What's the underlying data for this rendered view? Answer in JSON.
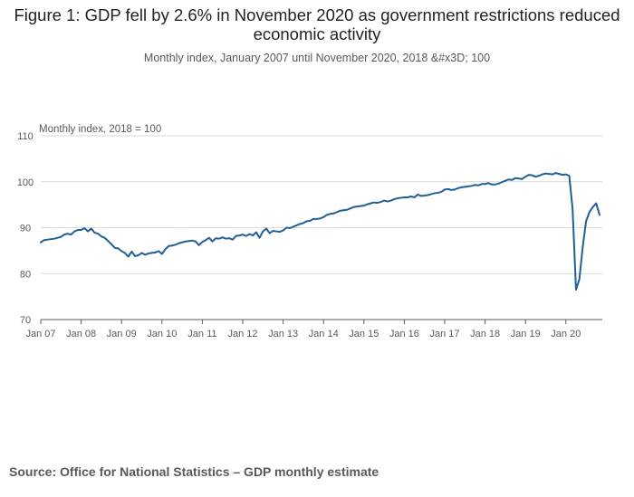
{
  "chart_data": {
    "type": "line",
    "title": "Figure 1: GDP fell by 2.6% in November 2020 as government restrictions reduced economic activity",
    "subtitle": "Monthly index, January 2007 until November 2020, 2018 &#x3D; 100",
    "ylabel": "Monthly index, 2018 = 100",
    "xlabel": "",
    "ylim": [
      70,
      110
    ],
    "yticks": [
      70,
      80,
      90,
      100,
      110
    ],
    "xticks": [
      "Jan 07",
      "Jan 08",
      "Jan 09",
      "Jan 10",
      "Jan 11",
      "Jan 12",
      "Jan 13",
      "Jan 14",
      "Jan 15",
      "Jan 16",
      "Jan 17",
      "Jan 18",
      "Jan 19",
      "Jan 20"
    ],
    "start": "Jan 2007",
    "end": "Nov 2020",
    "grid": true,
    "series": [
      {
        "name": "GDP monthly index",
        "color": "#206095",
        "values": [
          86.8,
          87.3,
          87.4,
          87.5,
          87.6,
          87.8,
          88.0,
          88.5,
          88.7,
          88.5,
          89.2,
          89.5,
          89.5,
          89.9,
          89.2,
          89.8,
          88.9,
          88.7,
          88.1,
          87.8,
          87.1,
          86.4,
          85.6,
          85.5,
          84.9,
          84.5,
          83.7,
          84.8,
          83.8,
          84.0,
          84.5,
          84.1,
          84.4,
          84.5,
          84.6,
          84.9,
          84.3,
          85.3,
          86.0,
          86.1,
          86.3,
          86.6,
          86.8,
          87.0,
          87.1,
          87.2,
          87.0,
          86.2,
          86.9,
          87.3,
          87.8,
          87.0,
          87.7,
          87.6,
          87.9,
          87.6,
          87.7,
          87.4,
          88.2,
          88.3,
          88.5,
          88.2,
          88.6,
          88.3,
          89.0,
          87.8,
          89.2,
          89.8,
          88.8,
          89.3,
          89.2,
          89.1,
          89.4,
          90.0,
          89.9,
          90.2,
          90.5,
          90.8,
          91.0,
          91.4,
          91.5,
          91.9,
          91.9,
          92.0,
          92.3,
          92.8,
          93.0,
          93.1,
          93.4,
          93.7,
          93.8,
          93.9,
          94.2,
          94.5,
          94.6,
          94.7,
          94.8,
          95.1,
          95.3,
          95.5,
          95.4,
          95.6,
          95.9,
          95.7,
          95.9,
          96.2,
          96.4,
          96.5,
          96.6,
          96.6,
          96.8,
          96.6,
          97.2,
          96.9,
          97.0,
          97.1,
          97.3,
          97.5,
          97.6,
          97.8,
          98.3,
          98.4,
          98.2,
          98.3,
          98.6,
          98.8,
          98.9,
          99.0,
          99.1,
          99.3,
          99.2,
          99.5,
          99.5,
          99.7,
          99.4,
          99.4,
          99.6,
          99.9,
          100.2,
          100.5,
          100.4,
          100.8,
          100.7,
          100.6,
          101.1,
          101.5,
          101.4,
          101.1,
          101.3,
          101.6,
          101.8,
          101.7,
          101.6,
          101.9,
          101.7,
          101.5,
          101.6,
          101.3,
          94.0,
          76.5,
          78.8,
          85.8,
          91.4,
          93.4,
          94.5,
          95.3,
          92.8
        ]
      }
    ]
  },
  "source": "Source: Office for National Statistics – GDP monthly estimate"
}
